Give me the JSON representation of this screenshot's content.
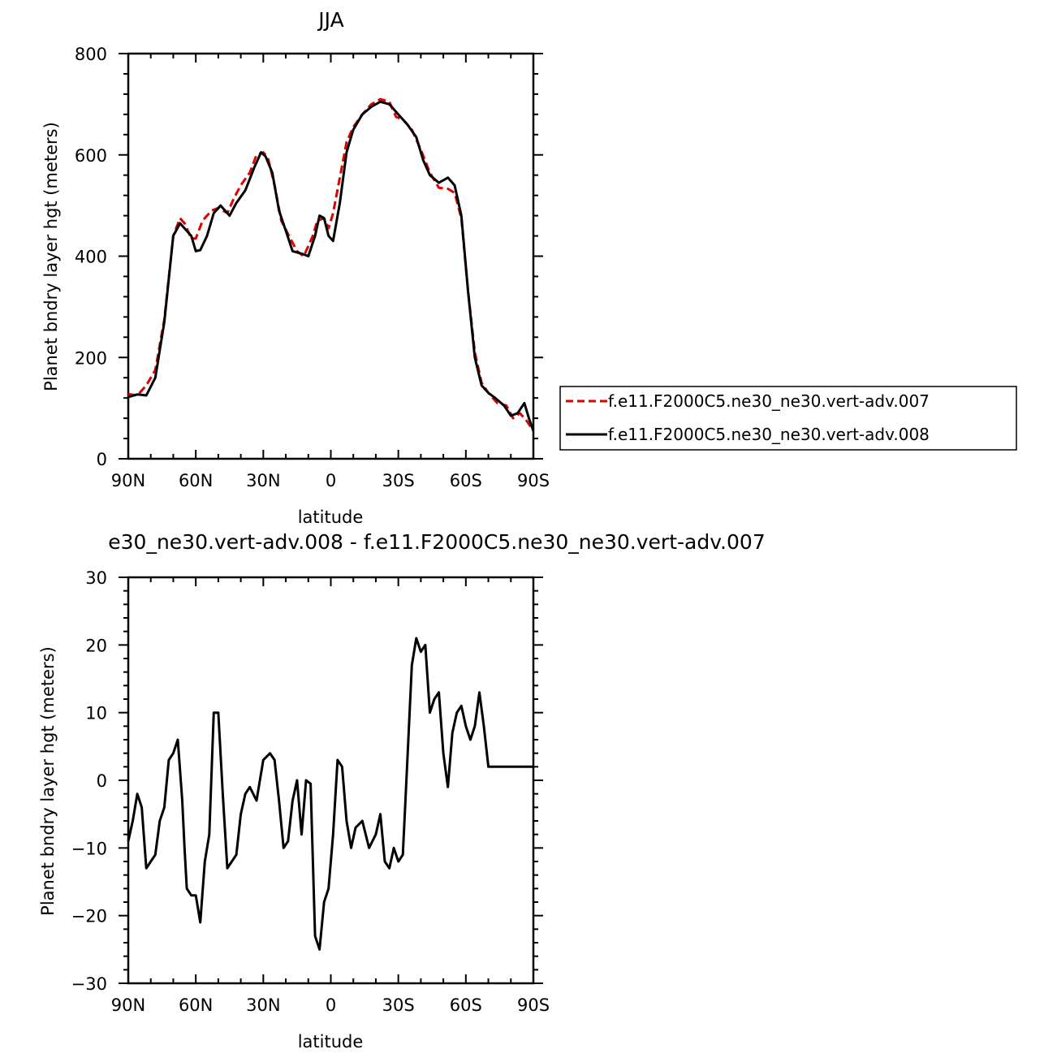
{
  "chart_data": [
    {
      "type": "line",
      "title": "JJA",
      "xlabel": "latitude",
      "ylabel": "Planet bndry layer hgt (meters)",
      "xlim": [
        -90,
        90
      ],
      "ylim": [
        0,
        800
      ],
      "x_tick_labels": [
        "90N",
        "60N",
        "30N",
        "0",
        "30S",
        "60S",
        "90S"
      ],
      "y_tick_labels": [
        "0",
        "200",
        "400",
        "600",
        "800"
      ],
      "legend_position": "right",
      "series": [
        {
          "name": "f.e11.F2000C5.ne30_ne30.vert-adv.007",
          "color": "#e00000",
          "dash": "dashed",
          "x": [
            -90,
            -86,
            -82,
            -78,
            -74,
            -70,
            -67,
            -65,
            -62,
            -60,
            -57,
            -53,
            -50,
            -46,
            -43,
            -40,
            -36,
            -33,
            -30,
            -28,
            -25,
            -22,
            -18,
            -15,
            -12,
            -8,
            -6,
            -3,
            -1,
            1,
            4,
            7,
            10,
            14,
            18,
            22,
            26,
            29,
            32,
            36,
            40,
            44,
            48,
            52,
            55,
            58,
            61,
            64,
            67,
            70,
            74,
            78,
            81,
            84,
            87,
            90
          ],
          "y": [
            128,
            125,
            145,
            175,
            275,
            440,
            475,
            465,
            435,
            435,
            470,
            490,
            495,
            485,
            515,
            540,
            565,
            600,
            605,
            595,
            540,
            470,
            435,
            410,
            400,
            440,
            470,
            475,
            455,
            485,
            555,
            625,
            655,
            680,
            700,
            710,
            705,
            675,
            670,
            650,
            610,
            565,
            535,
            533,
            525,
            475,
            330,
            210,
            150,
            130,
            110,
            105,
            80,
            90,
            75,
            55
          ]
        },
        {
          "name": "f.e11.F2000C5.ne30_ne30.vert-adv.008",
          "color": "#000000",
          "dash": "solid",
          "x": [
            -90,
            -86,
            -82,
            -78,
            -74,
            -70,
            -67,
            -65,
            -62,
            -60,
            -58,
            -55,
            -52,
            -49,
            -45,
            -42,
            -38,
            -34,
            -31,
            -29,
            -26,
            -23,
            -20,
            -17,
            -13,
            -10,
            -7,
            -5,
            -3,
            -1,
            1,
            4,
            7,
            10,
            14,
            18,
            22,
            26,
            28,
            31,
            34,
            38,
            41,
            44,
            48,
            52,
            55,
            58,
            61,
            64,
            67,
            70,
            73,
            77,
            80,
            83,
            86,
            88,
            90
          ],
          "y": [
            122,
            127,
            125,
            160,
            270,
            440,
            465,
            455,
            440,
            410,
            412,
            440,
            485,
            500,
            480,
            505,
            530,
            575,
            605,
            597,
            565,
            490,
            450,
            410,
            405,
            400,
            440,
            480,
            475,
            440,
            430,
            505,
            605,
            650,
            680,
            695,
            705,
            700,
            690,
            675,
            660,
            635,
            590,
            560,
            545,
            555,
            540,
            480,
            330,
            200,
            145,
            130,
            120,
            105,
            85,
            90,
            110,
            80,
            55
          ]
        }
      ]
    },
    {
      "type": "line",
      "title": "e30_ne30.vert-adv.008 - f.e11.F2000C5.ne30_ne30.vert-adv.007",
      "xlabel": "latitude",
      "ylabel": "Planet bndry layer hgt (meters)",
      "xlim": [
        -90,
        90
      ],
      "ylim": [
        -30,
        30
      ],
      "x_tick_labels": [
        "90N",
        "60N",
        "30N",
        "0",
        "30S",
        "60S",
        "90S"
      ],
      "y_tick_labels": [
        "−30",
        "−20",
        "−10",
        "0",
        "10",
        "20",
        "30"
      ],
      "series": [
        {
          "color": "#000000",
          "dash": "solid",
          "x": [
            -90,
            -88,
            -86,
            -84,
            -82,
            -80,
            -78,
            -76,
            -74,
            -72,
            -70,
            -68,
            -66,
            -65,
            -64,
            -62,
            -60,
            -58,
            -56,
            -54,
            -52,
            -50,
            -48,
            -46,
            -44,
            -42,
            -40,
            -38,
            -36,
            -33,
            -30,
            -27,
            -25,
            -23,
            -21,
            -19,
            -17,
            -15,
            -13,
            -11,
            -9,
            -7,
            -5,
            -3,
            -1,
            1,
            3,
            5,
            7,
            9,
            11,
            14,
            17,
            20,
            22,
            24,
            26,
            28,
            30,
            32,
            34,
            36,
            38,
            40,
            42,
            44,
            46,
            48,
            50,
            52,
            54,
            56,
            58,
            60,
            62,
            64,
            66,
            68,
            70,
            72,
            74,
            76,
            78,
            80,
            82,
            84,
            86,
            88,
            90
          ],
          "y": [
            -9,
            -6,
            -2,
            -4,
            -13,
            -12,
            -11,
            -6,
            -4,
            3,
            4,
            6,
            -3,
            -10,
            -16,
            -17,
            -17,
            -21,
            -12,
            -8,
            10,
            10,
            -2,
            -13,
            -12,
            -11,
            -5,
            -2,
            -1,
            -3,
            3,
            4,
            3,
            -3,
            -10,
            -9,
            -3,
            0,
            -8,
            0,
            -0.5,
            -23,
            -25,
            -18,
            -16,
            -8,
            3,
            2,
            -6,
            -10,
            -7,
            -6,
            -10,
            -8,
            -5,
            -12,
            -13,
            -10,
            -12,
            -11,
            3,
            17,
            21,
            19,
            20,
            10,
            12,
            13,
            4,
            -1,
            7,
            10,
            11,
            8,
            6,
            8,
            13,
            8,
            2,
            2,
            2,
            2,
            2,
            2,
            2,
            2,
            2,
            2,
            2
          ],
          "__note": "raw resampled"
        }
      ]
    }
  ]
}
